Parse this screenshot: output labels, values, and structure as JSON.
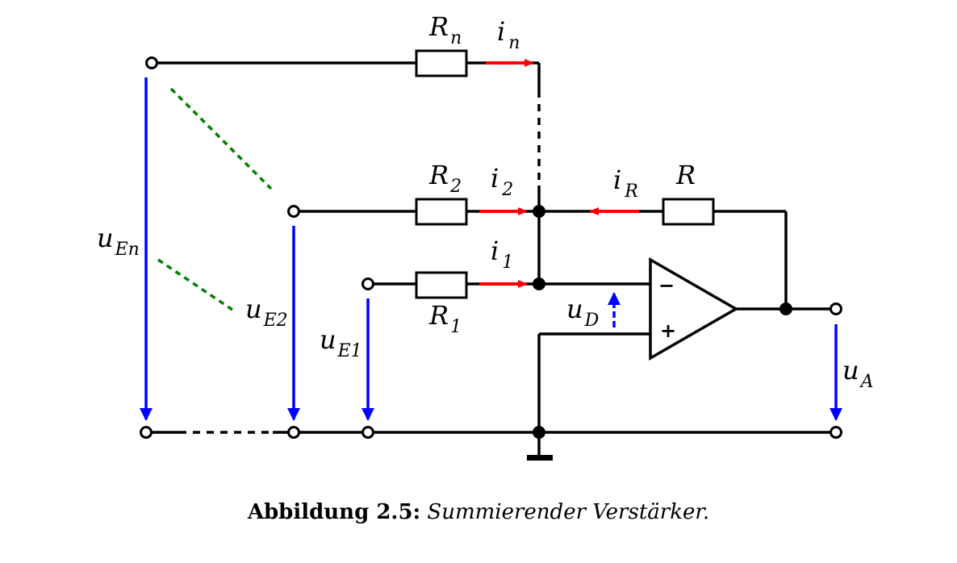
{
  "labels": {
    "Rn": {
      "main": "R",
      "sub": "n"
    },
    "R2": {
      "main": "R",
      "sub": "2"
    },
    "R1": {
      "main": "R",
      "sub": "1"
    },
    "R": {
      "main": "R",
      "sub": ""
    },
    "in": {
      "main": "i",
      "sub": "n"
    },
    "i2": {
      "main": "i",
      "sub": "2"
    },
    "i1": {
      "main": "i",
      "sub": "1"
    },
    "iR": {
      "main": "i",
      "sub": "R"
    },
    "uEn": {
      "main": "u",
      "sub": "En"
    },
    "uE2": {
      "main": "u",
      "sub": "E2"
    },
    "uE1": {
      "main": "u",
      "sub": "E1"
    },
    "uD": {
      "main": "u",
      "sub": "D"
    },
    "uA": {
      "main": "u",
      "sub": "A"
    }
  },
  "opamp": {
    "minus": "−",
    "plus": "+"
  },
  "caption": {
    "label": "Abbildung 2.5:",
    "text": "Summierender Verstärker."
  },
  "colors": {
    "current": "#ff0000",
    "voltage": "#0000ff",
    "ellipsis": "#008000"
  }
}
